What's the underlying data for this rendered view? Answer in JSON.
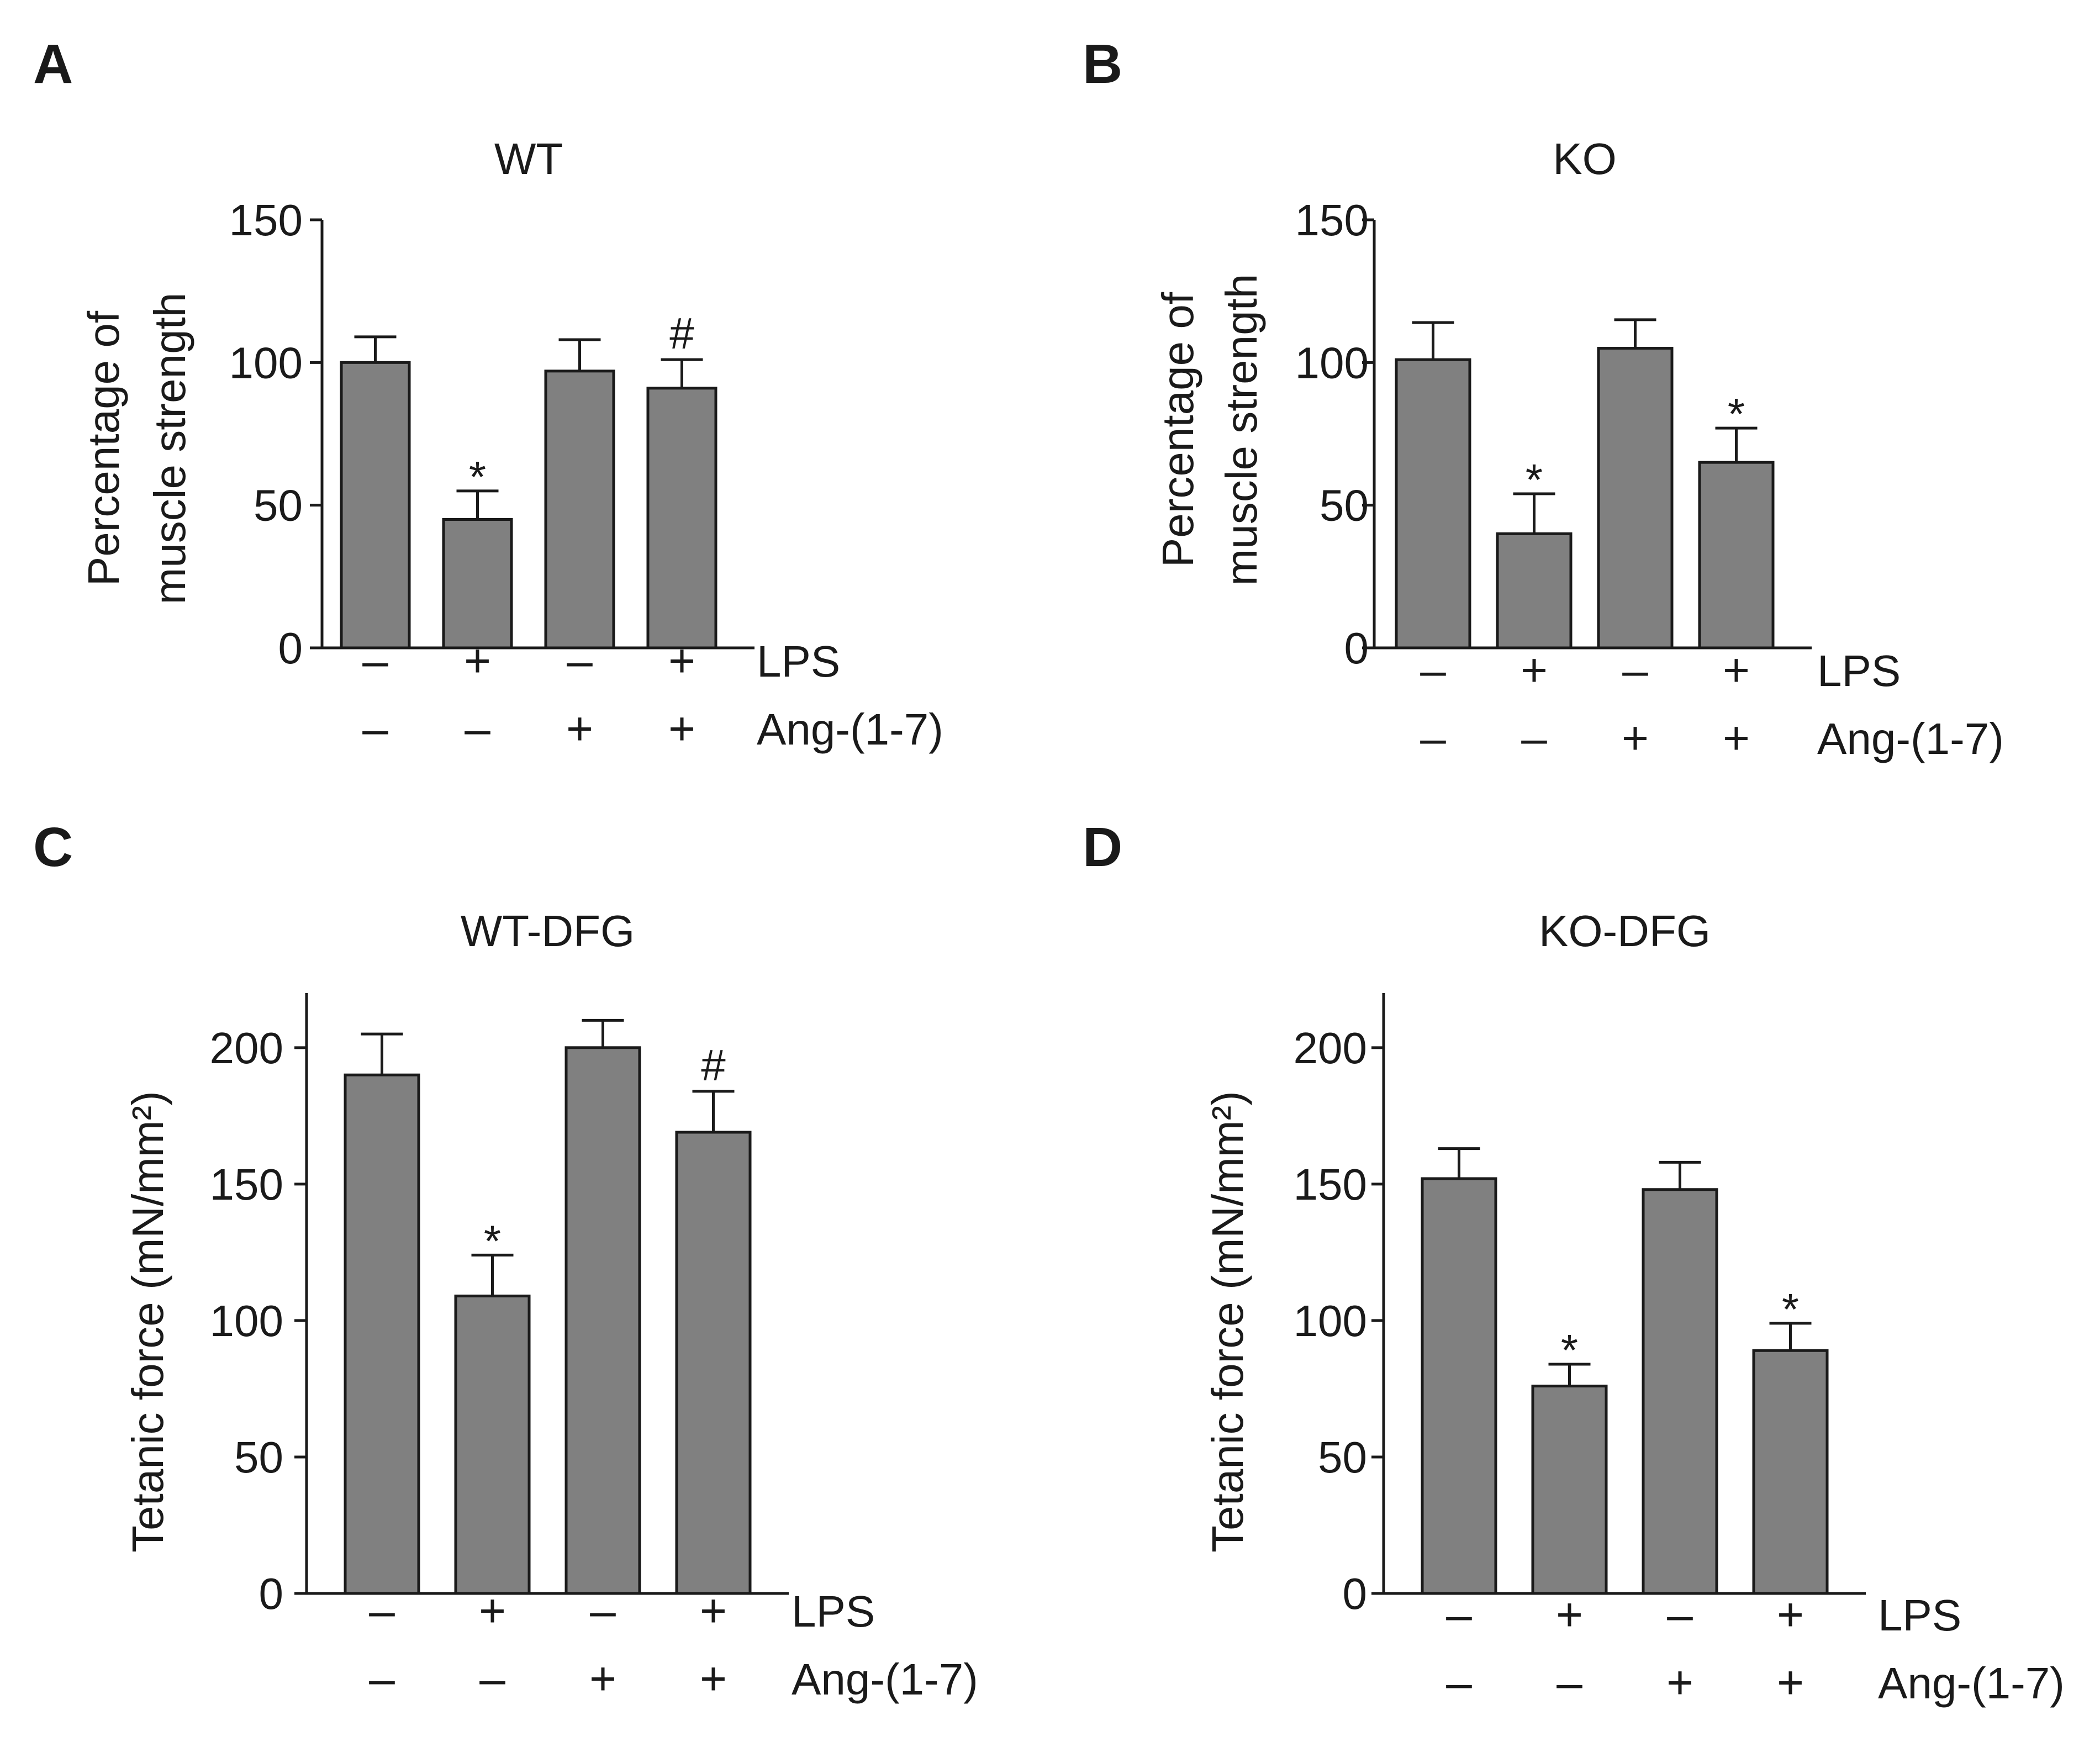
{
  "chart_data": [
    {
      "type": "bar",
      "panel": "A",
      "title": "WT",
      "ylabel": [
        "Percentage of",
        "muscle strength"
      ],
      "ylim": [
        0,
        150
      ],
      "yticks": [
        0,
        50,
        100,
        150
      ],
      "values": [
        100,
        45,
        97,
        91
      ],
      "errors": [
        9,
        10,
        11,
        10
      ],
      "annotations": [
        "",
        "*",
        "",
        "#"
      ],
      "conditions": [
        {
          "name": "LPS",
          "signs": [
            "–",
            "+",
            "–",
            "+"
          ]
        },
        {
          "name": "Ang-(1-7)",
          "signs": [
            "–",
            "–",
            "+",
            "+"
          ]
        }
      ]
    },
    {
      "type": "bar",
      "panel": "B",
      "title": "KO",
      "ylabel": [
        "Percentage of",
        "muscle strength"
      ],
      "ylim": [
        0,
        150
      ],
      "yticks": [
        0,
        50,
        100,
        150
      ],
      "values": [
        101,
        40,
        105,
        65
      ],
      "errors": [
        13,
        14,
        10,
        12
      ],
      "annotations": [
        "",
        "*",
        "",
        "*"
      ],
      "conditions": [
        {
          "name": "LPS",
          "signs": [
            "–",
            "+",
            "–",
            "+"
          ]
        },
        {
          "name": "Ang-(1-7)",
          "signs": [
            "–",
            "–",
            "+",
            "+"
          ]
        }
      ]
    },
    {
      "type": "bar",
      "panel": "C",
      "title": "WT-DFG",
      "ylabel": [
        "Tetanic force (mN/mm²)"
      ],
      "ylim": [
        0,
        220
      ],
      "yticks": [
        0,
        50,
        100,
        150,
        200
      ],
      "values": [
        190,
        109,
        200,
        169
      ],
      "errors": [
        15,
        15,
        10,
        15
      ],
      "annotations": [
        "",
        "*",
        "",
        "#"
      ],
      "conditions": [
        {
          "name": "LPS",
          "signs": [
            "–",
            "+",
            "–",
            "+"
          ]
        },
        {
          "name": "Ang-(1-7)",
          "signs": [
            "–",
            "–",
            "+",
            "+"
          ]
        }
      ]
    },
    {
      "type": "bar",
      "panel": "D",
      "title": "KO-DFG",
      "ylabel": [
        "Tetanic force (mN/mm²)"
      ],
      "ylim": [
        0,
        220
      ],
      "yticks": [
        0,
        50,
        100,
        150,
        200
      ],
      "values": [
        152,
        76,
        148,
        89
      ],
      "errors": [
        11,
        8,
        10,
        10
      ],
      "annotations": [
        "",
        "*",
        "",
        "*"
      ],
      "conditions": [
        {
          "name": "LPS",
          "signs": [
            "–",
            "+",
            "–",
            "+"
          ]
        },
        {
          "name": "Ang-(1-7)",
          "signs": [
            "–",
            "–",
            "+",
            "+"
          ]
        }
      ]
    }
  ],
  "colors": {
    "bar_fill": "#808080",
    "ink": "#1a1a1a"
  }
}
